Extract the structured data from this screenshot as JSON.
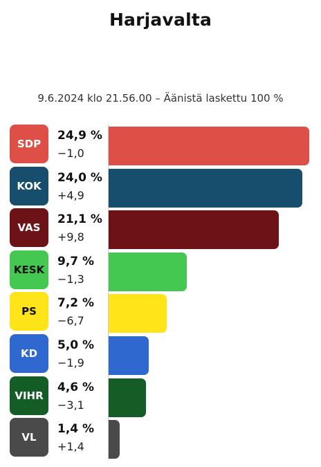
{
  "chart_data": {
    "type": "bar",
    "orientation": "horizontal",
    "title": "Harjavalta",
    "subtitle": "9.6.2024 klo 21.56.00 – Äänistä laskettu 100 %",
    "categories": [
      "SDP",
      "KOK",
      "VAS",
      "KESK",
      "PS",
      "KD",
      "VIHR",
      "VL"
    ],
    "values": [
      24.9,
      24.0,
      21.1,
      9.7,
      7.2,
      5.0,
      4.6,
      1.4
    ],
    "value_labels": [
      "24,9 %",
      "24,0 %",
      "21,1 %",
      "9,7 %",
      "7,2 %",
      "5,0 %",
      "4,6 %",
      "1,4 %"
    ],
    "changes": [
      -1.0,
      4.9,
      9.8,
      -1.3,
      -6.7,
      -1.9,
      -3.1,
      1.4
    ],
    "change_labels": [
      "−1,0",
      "+4,9",
      "+9,8",
      "−1,3",
      "−6,7",
      "−1,9",
      "−3,1",
      "+1,4"
    ],
    "colors": [
      "#de5047",
      "#174e6e",
      "#6d1317",
      "#45c851",
      "#ffe419",
      "#2f69d0",
      "#155d27",
      "#4a4a4a"
    ],
    "label_colors": [
      "#ffffff",
      "#ffffff",
      "#ffffff",
      "#111111",
      "#111111",
      "#ffffff",
      "#ffffff",
      "#ffffff"
    ],
    "xlim": [
      0,
      24.9
    ],
    "grid": false,
    "legend": "none"
  }
}
